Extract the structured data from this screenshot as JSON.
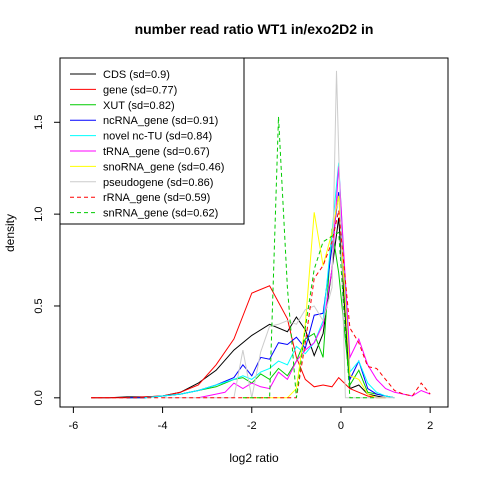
{
  "chart_data": {
    "type": "line",
    "title": "number read ratio WT1 in/exo2D2 in",
    "xlabel": "log2 ratio",
    "ylabel": "density",
    "xlim": [
      -6.3,
      2.4
    ],
    "ylim": [
      -0.05,
      1.85
    ],
    "x_ticks": [
      -6,
      -4,
      -2,
      0,
      2
    ],
    "x_tick_labels": [
      "-6",
      "-4",
      "-2",
      "0",
      "2"
    ],
    "y_ticks": [
      0.0,
      0.5,
      1.0,
      1.5
    ],
    "y_tick_labels": [
      "0.0",
      "0.5",
      "1.0",
      "1.5"
    ],
    "legend_position": "top-left",
    "series": [
      {
        "name": "CDS (sd=0.9)",
        "color": "#000000",
        "dash": "solid",
        "x": [
          -5.6,
          -5.2,
          -4.8,
          -4.4,
          -4.0,
          -3.6,
          -3.2,
          -2.8,
          -2.4,
          -2.0,
          -1.6,
          -1.2,
          -1.0,
          -0.8,
          -0.6,
          -0.4,
          -0.2,
          -0.05,
          0.2,
          0.4,
          0.6,
          0.8,
          1.0
        ],
        "y": [
          0.0,
          0.0,
          0.005,
          0.005,
          0.01,
          0.03,
          0.08,
          0.15,
          0.26,
          0.34,
          0.4,
          0.36,
          0.44,
          0.37,
          0.23,
          0.35,
          0.7,
          0.98,
          0.05,
          0.07,
          0.02,
          0.01,
          0.0
        ]
      },
      {
        "name": "gene (sd=0.77)",
        "color": "#ff0000",
        "dash": "solid",
        "x": [
          -5.6,
          -5.2,
          -4.8,
          -4.4,
          -4.0,
          -3.6,
          -3.2,
          -2.8,
          -2.4,
          -2.0,
          -1.6,
          -1.2,
          -1.0,
          -0.8,
          -0.6,
          -0.4,
          -0.2,
          -0.05,
          0.2,
          0.4,
          0.6,
          0.8,
          1.0
        ],
        "y": [
          0.0,
          0.0,
          0.0,
          0.005,
          0.01,
          0.03,
          0.07,
          0.18,
          0.32,
          0.57,
          0.61,
          0.43,
          0.22,
          0.1,
          0.06,
          0.07,
          0.06,
          0.11,
          0.05,
          0.03,
          0.01,
          0.0,
          0.0
        ]
      },
      {
        "name": "XUT (sd=0.82)",
        "color": "#00cc00",
        "dash": "solid",
        "x": [
          -4.8,
          -4.4,
          -4.0,
          -3.6,
          -3.2,
          -2.8,
          -2.4,
          -2.2,
          -2.0,
          -1.8,
          -1.6,
          -1.4,
          -1.2,
          -1.0,
          -0.8,
          -0.6,
          -0.4,
          -0.2,
          -0.05,
          0.2,
          0.4,
          0.6,
          0.8,
          1.0,
          1.2
        ],
        "y": [
          0.0,
          0.0,
          0.01,
          0.02,
          0.04,
          0.06,
          0.1,
          0.11,
          0.08,
          0.13,
          0.1,
          0.16,
          0.12,
          0.2,
          0.32,
          0.35,
          0.22,
          0.92,
          0.68,
          0.07,
          0.15,
          0.03,
          0.02,
          0.01,
          0.0
        ]
      },
      {
        "name": "ncRNA_gene (sd=0.91)",
        "color": "#0000ff",
        "dash": "solid",
        "x": [
          -4.8,
          -4.4,
          -4.0,
          -3.6,
          -3.2,
          -2.8,
          -2.4,
          -2.2,
          -2.0,
          -1.8,
          -1.6,
          -1.4,
          -1.2,
          -1.0,
          -0.8,
          -0.6,
          -0.4,
          -0.2,
          -0.05,
          0.2,
          0.4,
          0.6,
          0.8,
          1.0,
          1.2
        ],
        "y": [
          0.0,
          0.0,
          0.01,
          0.02,
          0.04,
          0.07,
          0.11,
          0.18,
          0.12,
          0.22,
          0.21,
          0.3,
          0.29,
          0.33,
          0.27,
          0.45,
          0.46,
          0.82,
          1.12,
          0.1,
          0.2,
          0.05,
          0.02,
          0.01,
          0.0
        ]
      },
      {
        "name": "novel nc-TU (sd=0.84)",
        "color": "#00ffff",
        "dash": "solid",
        "x": [
          -4.4,
          -4.0,
          -3.6,
          -3.2,
          -2.8,
          -2.4,
          -2.2,
          -2.0,
          -1.8,
          -1.6,
          -1.4,
          -1.2,
          -1.0,
          -0.8,
          -0.6,
          -0.4,
          -0.2,
          -0.05,
          0.2,
          0.4,
          0.6,
          0.8,
          1.0,
          1.2
        ],
        "y": [
          0.0,
          0.01,
          0.02,
          0.04,
          0.07,
          0.1,
          0.12,
          0.1,
          0.14,
          0.16,
          0.2,
          0.18,
          0.28,
          0.24,
          0.3,
          0.42,
          0.9,
          1.28,
          0.14,
          0.2,
          0.08,
          0.03,
          0.01,
          0.0
        ]
      },
      {
        "name": "tRNA_gene (sd=0.67)",
        "color": "#ff00ff",
        "dash": "solid",
        "x": [
          -3.2,
          -2.8,
          -2.6,
          -2.4,
          -2.2,
          -2.0,
          -1.8,
          -1.6,
          -1.4,
          -1.2,
          -1.0,
          -0.8,
          -0.6,
          -0.4,
          -0.2,
          -0.05,
          0.2,
          0.4,
          0.6,
          0.8,
          1.0,
          1.2,
          1.4,
          1.6,
          1.8,
          2.0
        ],
        "y": [
          0.0,
          0.02,
          0.03,
          0.08,
          0.05,
          0.08,
          0.06,
          0.05,
          0.14,
          0.1,
          0.2,
          0.26,
          0.3,
          0.4,
          0.7,
          1.26,
          0.22,
          0.32,
          0.18,
          0.1,
          0.05,
          0.03,
          0.02,
          0.01,
          0.04,
          0.02
        ]
      },
      {
        "name": "snoRNA_gene (sd=0.46)",
        "color": "#ffff00",
        "dash": "solid",
        "x": [
          -2.2,
          -2.0,
          -1.8,
          -1.6,
          -1.4,
          -1.2,
          -1.0,
          -0.8,
          -0.6,
          -0.4,
          -0.2,
          -0.05,
          0.2,
          0.4,
          0.6,
          0.8,
          1.0
        ],
        "y": [
          0.0,
          0.0,
          0.0,
          0.0,
          0.0,
          0.0,
          0.05,
          0.4,
          1.01,
          0.72,
          0.9,
          1.1,
          0.12,
          0.1,
          0.02,
          0.0,
          0.0
        ]
      },
      {
        "name": "pseudogene (sd=0.86)",
        "color": "#cccccc",
        "dash": "solid",
        "x": [
          -4.0,
          -3.6,
          -3.2,
          -2.8,
          -2.4,
          -2.2,
          -2.0,
          -1.8,
          -1.6,
          -1.4,
          -1.2,
          -1.0,
          -0.8,
          -0.6,
          -0.4,
          -0.2,
          -0.1,
          0.1,
          0.4,
          0.6,
          0.8,
          1.0,
          1.2
        ],
        "y": [
          0.0,
          0.0,
          0.0,
          0.0,
          0.0,
          0.26,
          0.0,
          0.25,
          0.39,
          0.4,
          0.42,
          0.4,
          0.48,
          0.5,
          0.42,
          0.6,
          1.78,
          0.0,
          0.0,
          0.0,
          0.0,
          0.0,
          0.0
        ]
      },
      {
        "name": "rRNA_gene (sd=0.59)",
        "color": "#ff0000",
        "dash": "dashed",
        "x": [
          -5.6,
          -4.0,
          -2.0,
          -1.4,
          -1.2,
          -1.0,
          -0.8,
          -0.6,
          -0.4,
          -0.2,
          -0.05,
          0.2,
          0.4,
          0.6,
          0.8,
          1.0,
          1.2,
          1.4,
          1.6,
          1.8,
          2.0
        ],
        "y": [
          0.0,
          0.0,
          0.0,
          0.0,
          0.0,
          0.0,
          0.3,
          0.65,
          0.72,
          0.85,
          1.02,
          0.38,
          0.3,
          0.17,
          0.16,
          0.1,
          0.04,
          0.02,
          0.01,
          0.08,
          0.02
        ]
      },
      {
        "name": "snRNA_gene (sd=0.62)",
        "color": "#00cc00",
        "dash": "dashed",
        "x": [
          -2.2,
          -2.0,
          -1.8,
          -1.6,
          -1.4,
          -1.2,
          -1.0,
          -0.8,
          -0.6,
          -0.4,
          -0.2,
          -0.05,
          0.2,
          0.4,
          0.6,
          0.8
        ],
        "y": [
          0.0,
          0.0,
          0.0,
          0.0,
          1.53,
          0.6,
          0.0,
          0.38,
          0.7,
          0.85,
          0.88,
          0.9,
          0.0,
          0.0,
          0.0,
          0.0
        ]
      }
    ]
  }
}
